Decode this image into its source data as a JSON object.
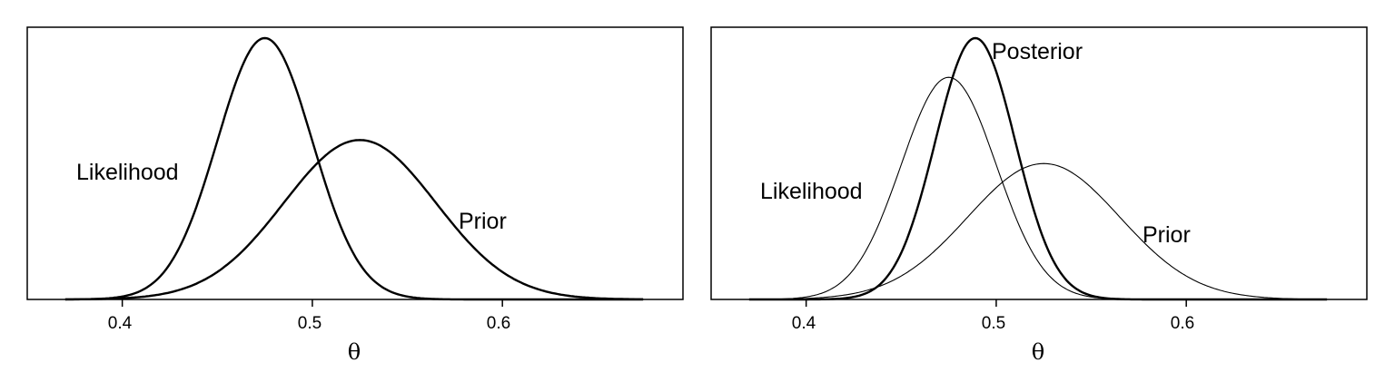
{
  "chart_data": [
    {
      "type": "line",
      "xlabel": "θ",
      "xlim": [
        0.35,
        0.695
      ],
      "ylim": [
        0,
        1.0
      ],
      "x_ticks": [
        "0.4",
        "0.5",
        "0.6"
      ],
      "series": [
        {
          "name": "Likelihood",
          "mean": 0.475,
          "sd": 0.025,
          "peak": 1.0,
          "weight": "bold"
        },
        {
          "name": "Prior",
          "mean": 0.525,
          "sd": 0.04,
          "peak": 0.61,
          "weight": "bold"
        }
      ],
      "labels": [
        "Likelihood",
        "Prior"
      ]
    },
    {
      "type": "line",
      "xlabel": "θ",
      "xlim": [
        0.35,
        0.695
      ],
      "ylim": [
        0,
        1.0
      ],
      "x_ticks": [
        "0.4",
        "0.5",
        "0.6"
      ],
      "series": [
        {
          "name": "Likelihood",
          "mean": 0.475,
          "sd": 0.025,
          "peak": 0.85,
          "weight": "thin"
        },
        {
          "name": "Prior",
          "mean": 0.525,
          "sd": 0.04,
          "peak": 0.52,
          "weight": "thin"
        },
        {
          "name": "Posterior",
          "mean": 0.489,
          "sd": 0.021,
          "peak": 1.0,
          "weight": "bold"
        }
      ],
      "labels": [
        "Likelihood",
        "Posterior",
        "Prior"
      ]
    }
  ]
}
